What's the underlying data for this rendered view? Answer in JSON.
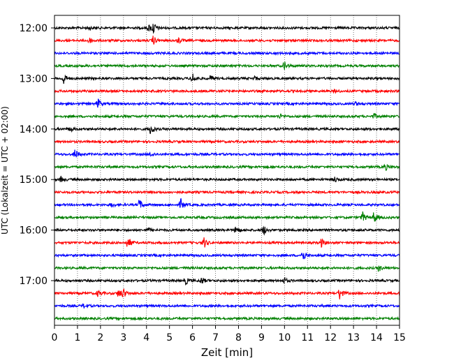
{
  "chart_data": {
    "type": "line",
    "title": "",
    "xlabel": "Zeit  [min]",
    "ylabel": "UTC (Lokalzeit = UTC + 02:00)",
    "xlim": [
      0,
      15
    ],
    "x_ticks": [
      "0",
      "1",
      "2",
      "3",
      "4",
      "5",
      "6",
      "7",
      "8",
      "9",
      "10",
      "11",
      "12",
      "13",
      "14",
      "15"
    ],
    "y_tick_labels": [
      "12:00",
      "13:00",
      "14:00",
      "15:00",
      "16:00",
      "17:00"
    ],
    "y_tick_rows": [
      0,
      4,
      8,
      12,
      16,
      20
    ],
    "grid": "vertical dotted",
    "row_interval_min": 15,
    "row_colors": [
      "#000000",
      "#ff0000",
      "#0000ff",
      "#008000"
    ],
    "rows": [
      {
        "start": "12:00",
        "color": "#000000",
        "events": [
          [
            4.1,
            4.5
          ],
          [
            4.3,
            8
          ],
          [
            1.5,
            2.5
          ]
        ]
      },
      {
        "start": "12:15",
        "color": "#ff0000",
        "events": [
          [
            1.5,
            4.5
          ],
          [
            4.3,
            6
          ],
          [
            5.4,
            4
          ]
        ]
      },
      {
        "start": "12:30",
        "color": "#0000ff",
        "events": []
      },
      {
        "start": "12:45",
        "color": "#008000",
        "events": [
          [
            10.0,
            6
          ]
        ]
      },
      {
        "start": "13:00",
        "color": "#000000",
        "events": [
          [
            0.4,
            8
          ],
          [
            6.0,
            7.5
          ],
          [
            6.8,
            4
          ],
          [
            8.7,
            2.5
          ]
        ]
      },
      {
        "start": "13:15",
        "color": "#ff0000",
        "events": [
          [
            12.2,
            2.5
          ]
        ]
      },
      {
        "start": "13:30",
        "color": "#0000ff",
        "events": [
          [
            1.9,
            6.5
          ],
          [
            13.1,
            2.5
          ]
        ]
      },
      {
        "start": "13:45",
        "color": "#008000",
        "events": [
          [
            9.8,
            3
          ],
          [
            13.9,
            3.5
          ]
        ]
      },
      {
        "start": "14:00",
        "color": "#000000",
        "events": [
          [
            4.2,
            8
          ],
          [
            0.7,
            3
          ]
        ]
      },
      {
        "start": "14:15",
        "color": "#ff0000",
        "events": []
      },
      {
        "start": "14:30",
        "color": "#0000ff",
        "events": [
          [
            0.9,
            7
          ],
          [
            4.2,
            3
          ]
        ]
      },
      {
        "start": "14:45",
        "color": "#008000",
        "events": [
          [
            14.4,
            4
          ]
        ]
      },
      {
        "start": "15:00",
        "color": "#000000",
        "events": [
          [
            0.3,
            4
          ],
          [
            12.2,
            3.5
          ]
        ]
      },
      {
        "start": "15:15",
        "color": "#ff0000",
        "events": []
      },
      {
        "start": "15:30",
        "color": "#0000ff",
        "events": [
          [
            3.7,
            7
          ],
          [
            5.5,
            8
          ],
          [
            2.5,
            3
          ]
        ]
      },
      {
        "start": "15:45",
        "color": "#008000",
        "events": [
          [
            13.4,
            7
          ],
          [
            13.9,
            8
          ]
        ]
      },
      {
        "start": "16:00",
        "color": "#000000",
        "events": [
          [
            7.9,
            6
          ],
          [
            9.1,
            6.5
          ],
          [
            4.1,
            2.5
          ]
        ]
      },
      {
        "start": "16:15",
        "color": "#ff0000",
        "events": [
          [
            3.2,
            8.5
          ],
          [
            6.5,
            7.5
          ],
          [
            11.6,
            6
          ]
        ]
      },
      {
        "start": "16:30",
        "color": "#0000ff",
        "events": [
          [
            10.8,
            8
          ]
        ]
      },
      {
        "start": "16:45",
        "color": "#008000",
        "events": [
          [
            14.1,
            4.5
          ]
        ]
      },
      {
        "start": "17:00",
        "color": "#000000",
        "events": [
          [
            5.7,
            5
          ],
          [
            6.4,
            5
          ],
          [
            10.0,
            4
          ]
        ]
      },
      {
        "start": "17:15",
        "color": "#ff0000",
        "events": [
          [
            1.9,
            4
          ],
          [
            2.8,
            6
          ],
          [
            3.0,
            5.5
          ],
          [
            12.4,
            9
          ]
        ]
      },
      {
        "start": "17:30",
        "color": "#0000ff",
        "events": [
          [
            1.3,
            3
          ]
        ]
      },
      {
        "start": "17:45",
        "color": "#008000",
        "events": []
      }
    ]
  }
}
